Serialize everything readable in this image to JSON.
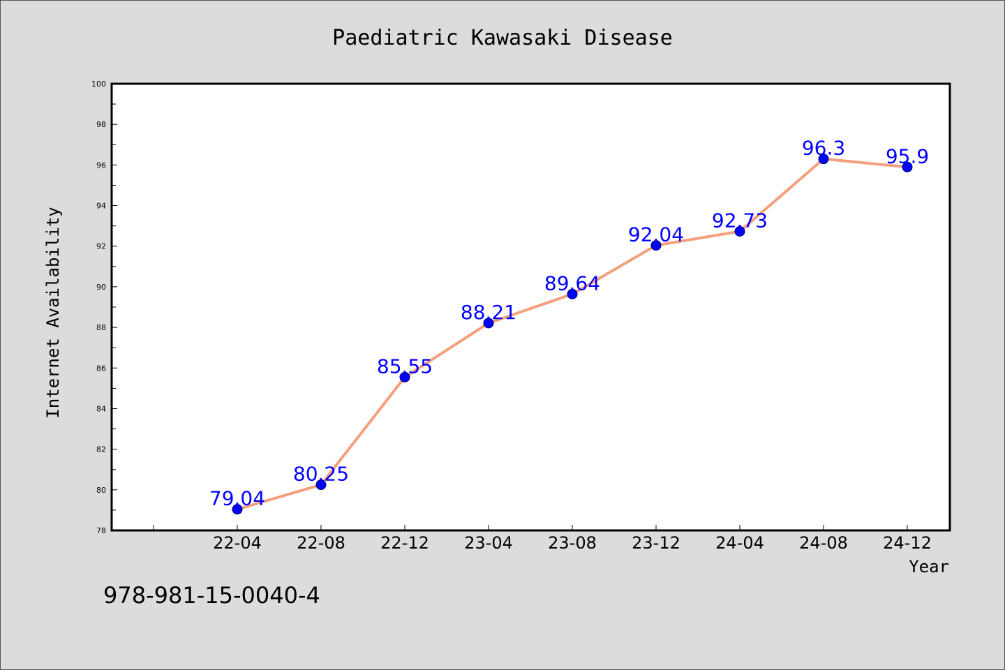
{
  "chart_data": {
    "type": "line",
    "title": "Paediatric Kawasaki Disease",
    "xlabel": "Year",
    "ylabel": "Internet Availability",
    "categories": [
      "22-04",
      "22-08",
      "22-12",
      "23-04",
      "23-08",
      "23-12",
      "24-04",
      "24-08",
      "24-12"
    ],
    "series": [
      {
        "values": [
          79.04,
          80.25,
          85.55,
          88.21,
          89.64,
          92.04,
          92.73,
          96.3,
          95.9
        ],
        "labels": [
          "79.04",
          "80.25",
          "85.55",
          "88.21",
          "89.64",
          "92.04",
          "92.73",
          "96.3",
          "95.9"
        ],
        "line_color": "#f4a07e",
        "marker_color": "#0000ff"
      }
    ],
    "ylim": [
      78,
      100
    ],
    "yticks": [
      78,
      80,
      82,
      84,
      86,
      88,
      90,
      92,
      94,
      96,
      98,
      100
    ],
    "grid": false
  },
  "footer": {
    "text": "978-981-15-0040-4"
  },
  "colors": {
    "background": "#dcdcdc",
    "plot_background": "#ffffff",
    "axis": "#000000"
  }
}
